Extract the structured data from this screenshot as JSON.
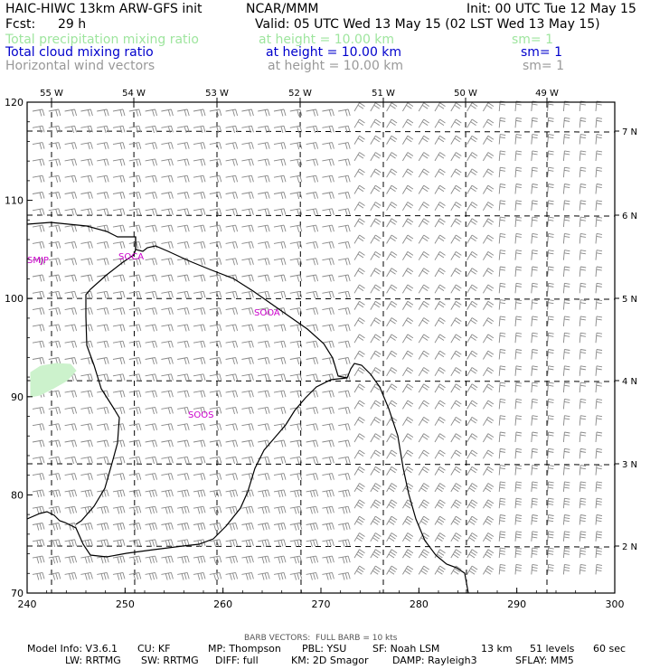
{
  "header": {
    "title": "HAIC-HIWC 13km ARW-GFS init",
    "center": "NCAR/MMM",
    "init": "Init: 00 UTC Tue 12 May 15",
    "fcst_label": "Fcst:",
    "fcst_value": "29 h",
    "valid": "Valid: 05 UTC Wed 13 May 15 (02 LST Wed 13 May 15)"
  },
  "fields": [
    {
      "name": "Total precipitation mixing ratio",
      "level": "at height = 10.00 km",
      "sm": "sm= 1",
      "color": "#9ee59e"
    },
    {
      "name": "Total cloud mixing ratio",
      "level": "at height = 10.00 km",
      "sm": "sm= 1",
      "color": "#0000cc"
    },
    {
      "name": "Horizontal wind vectors",
      "level": "at height = 10.00 km",
      "sm": "sm= 1",
      "color": "#999999"
    }
  ],
  "map": {
    "x_ticks": [
      "240",
      "250",
      "260",
      "270",
      "280",
      "290",
      "300"
    ],
    "y_ticks": [
      "70",
      "80",
      "90",
      "100",
      "110",
      "120"
    ],
    "lon_labels": [
      "55 W",
      "54 W",
      "53 W",
      "52 W",
      "51 W",
      "50 W",
      "49 W"
    ],
    "lat_labels": [
      "7 N",
      "6 N",
      "5 N",
      "4 N",
      "3 N",
      "2 N"
    ],
    "stations": [
      "SMJP",
      "SOCA",
      "SOOA",
      "SOOS"
    ],
    "colors": {
      "precip_shade": "#ccf2cc",
      "cloud_contour": "#0000cc",
      "wind_barbs": "#888888",
      "station_labels": "#cc00cc",
      "coastline": "#000000"
    }
  },
  "footer": {
    "barb_legend": "BARB VECTORS:  FULL BARB = 10 kts",
    "line1": [
      "Model Info: V3.6.1",
      "CU: KF",
      "MP: Thompson",
      "PBL: YSU",
      "SF: Noah LSM",
      "13 km",
      "51 levels",
      "60 sec"
    ],
    "line2": [
      "LW: RRTMG",
      "SW: RRTMG",
      "DIFF: full",
      "KM: 2D Smagor",
      "DAMP: Rayleigh3",
      "SFLAY: MM5"
    ]
  }
}
